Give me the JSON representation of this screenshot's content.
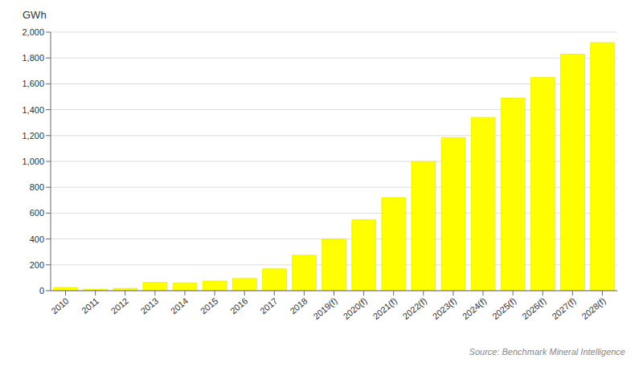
{
  "chart_data": {
    "type": "bar",
    "ylabel": "GWh",
    "annotation": "Source: Benchmark Mineral Intelligence",
    "categories": [
      "2010",
      "2011",
      "2012",
      "2013",
      "2014",
      "2015",
      "2016",
      "2017",
      "2018",
      "2019(f)",
      "2020(f)",
      "2021(f)",
      "2022(f)",
      "2023(f)",
      "2024(f)",
      "2025(f)",
      "2026(f)",
      "2027(f)",
      "2028(f)"
    ],
    "values": [
      25,
      12,
      18,
      65,
      60,
      75,
      95,
      170,
      275,
      400,
      550,
      720,
      1000,
      1185,
      1340,
      1490,
      1650,
      1830,
      1920
    ],
    "color": "#FFFF00",
    "ylim": [
      0,
      2000
    ],
    "yticks": [
      0,
      200,
      400,
      600,
      800,
      {
        "value": 1000,
        "label": "1,000"
      },
      {
        "value": 1200,
        "label": "1,200"
      },
      {
        "value": 1400,
        "label": "1,400"
      },
      {
        "value": 1600,
        "label": "1,600"
      },
      {
        "value": 1800,
        "label": "1,800"
      },
      {
        "value": 2000,
        "label": "2,000"
      }
    ],
    "grid": true
  }
}
